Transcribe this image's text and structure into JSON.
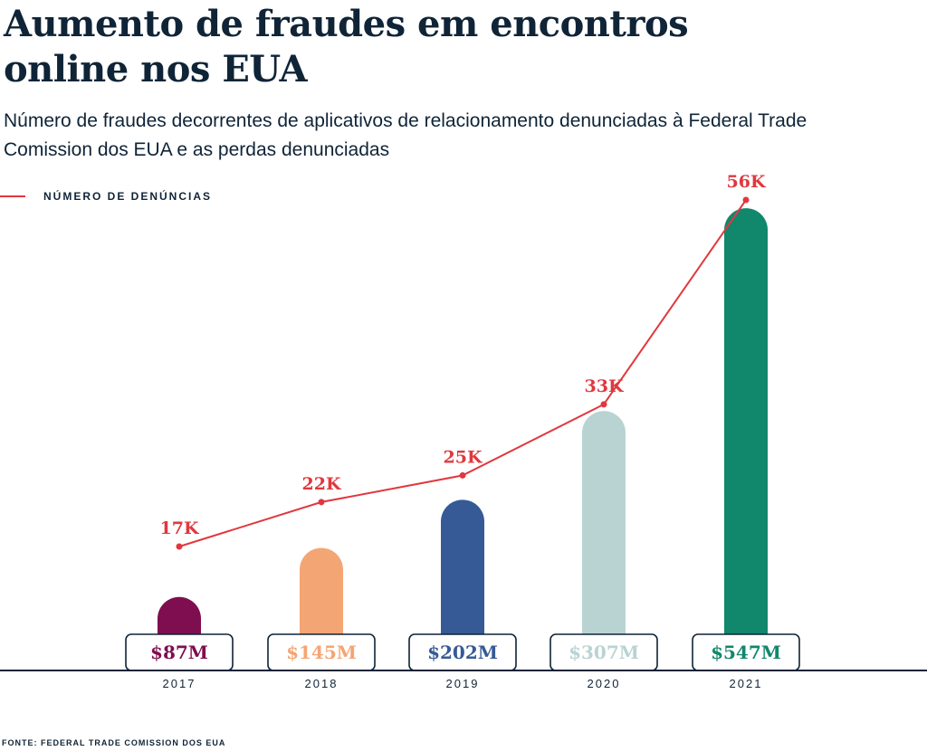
{
  "title": "Aumento de fraudes em encontros online nos EUA",
  "subtitle": "Número de fraudes decorrentes de aplicativos de relacionamento denunciadas à Federal Trade Comission dos EUA e as perdas denunciadas",
  "source": "FONTE: FEDERAL TRADE COMISSION DOS EUA",
  "chart_data": {
    "type": "bar",
    "categories": [
      "2017",
      "2018",
      "2019",
      "2020",
      "2021"
    ],
    "series": [
      {
        "name": "",
        "kind": "bar",
        "unit": "$M",
        "values": [
          87,
          145,
          202,
          307,
          547
        ],
        "labels": [
          "$87M",
          "$145M",
          "$202M",
          "$307M",
          "$547M"
        ],
        "colors": [
          "#7e0e4f",
          "#f4a574",
          "#355a96",
          "#b9d3d3",
          "#11876c"
        ]
      },
      {
        "name": "NÚMERO DE DENÚNCIAS",
        "kind": "line",
        "unit": "K",
        "values": [
          17,
          22,
          25,
          33,
          56
        ],
        "labels": [
          "17K",
          "22K",
          "25K",
          "33K",
          "56K"
        ],
        "color": "#e0383e"
      }
    ],
    "legend": "top-left",
    "grid": false
  }
}
